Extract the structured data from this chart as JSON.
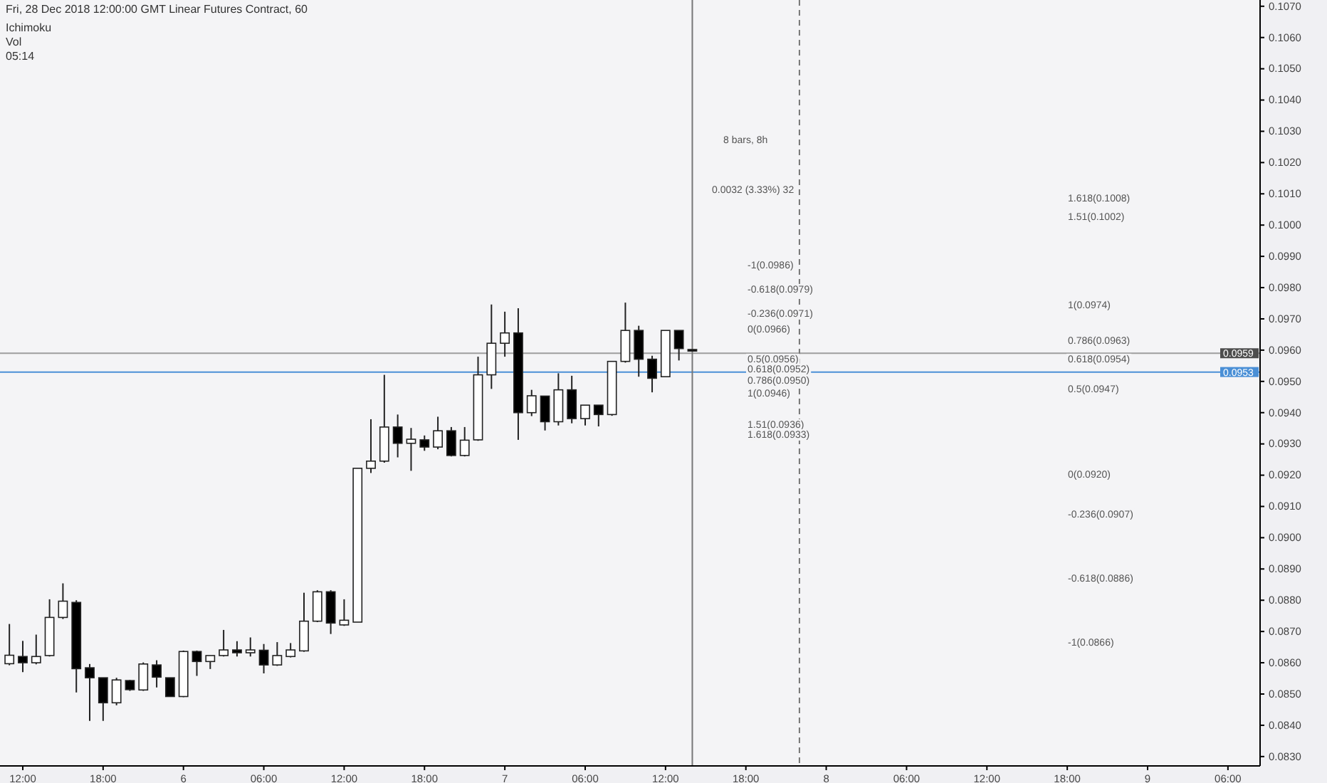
{
  "chart_data": {
    "type": "candlestick",
    "title": "Fri, 28 Dec 2018 12:00:00 GMT Linear Futures Contract, 60",
    "x": [
      "2018-12-05T11:00",
      "2018-12-05T12:00",
      "2018-12-05T13:00",
      "2018-12-05T14:00",
      "2018-12-05T15:00",
      "2018-12-05T16:00",
      "2018-12-05T17:00",
      "2018-12-05T18:00",
      "2018-12-05T19:00",
      "2018-12-05T20:00",
      "2018-12-05T21:00",
      "2018-12-05T22:00",
      "2018-12-05T23:00",
      "2018-12-06T00:00",
      "2018-12-06T01:00",
      "2018-12-06T02:00",
      "2018-12-06T03:00",
      "2018-12-06T04:00",
      "2018-12-06T05:00",
      "2018-12-06T06:00",
      "2018-12-06T07:00",
      "2018-12-06T08:00",
      "2018-12-06T09:00",
      "2018-12-06T10:00",
      "2018-12-06T11:00",
      "2018-12-06T12:00",
      "2018-12-06T13:00",
      "2018-12-06T14:00",
      "2018-12-06T15:00",
      "2018-12-06T16:00",
      "2018-12-06T17:00",
      "2018-12-06T18:00",
      "2018-12-06T19:00",
      "2018-12-06T20:00",
      "2018-12-06T21:00",
      "2018-12-06T22:00",
      "2018-12-06T23:00",
      "2018-12-07T00:00",
      "2018-12-07T01:00",
      "2018-12-07T02:00",
      "2018-12-07T03:00",
      "2018-12-07T04:00",
      "2018-12-07T05:00",
      "2018-12-07T06:00",
      "2018-12-07T07:00",
      "2018-12-07T08:00",
      "2018-12-07T09:00",
      "2018-12-07T10:00",
      "2018-12-07T11:00",
      "2018-12-07T12:00",
      "2018-12-07T13:00",
      "2018-12-07T14:00"
    ],
    "ohlc": [
      [
        0.08597,
        0.08724,
        0.08592,
        0.08624
      ],
      [
        0.0862,
        0.0867,
        0.0857,
        0.086
      ],
      [
        0.086,
        0.0869,
        0.08595,
        0.0862
      ],
      [
        0.08623,
        0.08803,
        0.0862,
        0.08745
      ],
      [
        0.08745,
        0.08854,
        0.0874,
        0.08797
      ],
      [
        0.08793,
        0.088,
        0.08505,
        0.08581
      ],
      [
        0.08584,
        0.08596,
        0.08414,
        0.08552
      ],
      [
        0.08552,
        0.08552,
        0.08414,
        0.08472
      ],
      [
        0.08472,
        0.08552,
        0.08464,
        0.08545
      ],
      [
        0.08543,
        0.08545,
        0.0851,
        0.08514
      ],
      [
        0.08513,
        0.08601,
        0.0851,
        0.08596
      ],
      [
        0.08593,
        0.08608,
        0.08521,
        0.08554
      ],
      [
        0.08552,
        0.08552,
        0.08492,
        0.08492
      ],
      [
        0.08492,
        0.08639,
        0.0849,
        0.08636
      ],
      [
        0.08636,
        0.08639,
        0.08558,
        0.08604
      ],
      [
        0.08604,
        0.08623,
        0.0858,
        0.08623
      ],
      [
        0.08623,
        0.08705,
        0.0862,
        0.08641
      ],
      [
        0.08641,
        0.08669,
        0.0862,
        0.08632
      ],
      [
        0.08632,
        0.08681,
        0.0862,
        0.08641
      ],
      [
        0.0864,
        0.0866,
        0.08566,
        0.08593
      ],
      [
        0.08593,
        0.08666,
        0.0859,
        0.08623
      ],
      [
        0.0862,
        0.08663,
        0.08617,
        0.08641
      ],
      [
        0.08638,
        0.08824,
        0.08635,
        0.08733
      ],
      [
        0.08733,
        0.08832,
        0.0873,
        0.08827
      ],
      [
        0.08827,
        0.08832,
        0.08692,
        0.08727
      ],
      [
        0.08721,
        0.08803,
        0.08718,
        0.08736
      ],
      [
        0.0873,
        0.09222,
        0.0873,
        0.09222
      ],
      [
        0.09222,
        0.09379,
        0.09207,
        0.09245
      ],
      [
        0.09245,
        0.09521,
        0.0924,
        0.09354
      ],
      [
        0.09354,
        0.09394,
        0.09257,
        0.09302
      ],
      [
        0.09302,
        0.09351,
        0.09214,
        0.09315
      ],
      [
        0.09313,
        0.09327,
        0.09278,
        0.0929
      ],
      [
        0.0929,
        0.09387,
        0.09283,
        0.09342
      ],
      [
        0.09342,
        0.09354,
        0.0926,
        0.09263
      ],
      [
        0.09263,
        0.09354,
        0.0926,
        0.09312
      ],
      [
        0.09313,
        0.09579,
        0.0931,
        0.09521
      ],
      [
        0.09521,
        0.09746,
        0.09476,
        0.09622
      ],
      [
        0.09622,
        0.09723,
        0.09579,
        0.09655
      ],
      [
        0.09655,
        0.09734,
        0.09313,
        0.094
      ],
      [
        0.094,
        0.09473,
        0.09389,
        0.09454
      ],
      [
        0.09453,
        0.09453,
        0.09343,
        0.09371
      ],
      [
        0.09371,
        0.09526,
        0.09359,
        0.09473
      ],
      [
        0.09473,
        0.09518,
        0.09366,
        0.09381
      ],
      [
        0.09381,
        0.09424,
        0.09359,
        0.09424
      ],
      [
        0.09424,
        0.09424,
        0.09356,
        0.09394
      ],
      [
        0.09394,
        0.09564,
        0.0939,
        0.09564
      ],
      [
        0.09564,
        0.09752,
        0.0956,
        0.09663
      ],
      [
        0.09663,
        0.09678,
        0.09515,
        0.09571
      ],
      [
        0.09571,
        0.09582,
        0.09465,
        0.0951
      ],
      [
        0.09515,
        0.09663,
        0.09515,
        0.09663
      ],
      [
        0.09663,
        0.09663,
        0.09567,
        0.09605
      ],
      [
        0.09602,
        0.09602,
        0.09597,
        0.09597
      ]
    ],
    "xlim": [
      "2018-12-05T10:18",
      "2018-12-09T08:24"
    ],
    "xticks": [
      {
        "value": "2018-12-05T12:00",
        "label": "12:00"
      },
      {
        "value": "2018-12-05T18:00",
        "label": "18:00"
      },
      {
        "value": "2018-12-06T00:00",
        "label": "6"
      },
      {
        "value": "2018-12-06T06:00",
        "label": "06:00"
      },
      {
        "value": "2018-12-06T12:00",
        "label": "12:00"
      },
      {
        "value": "2018-12-06T18:00",
        "label": "18:00"
      },
      {
        "value": "2018-12-07T00:00",
        "label": "7"
      },
      {
        "value": "2018-12-07T06:00",
        "label": "06:00"
      },
      {
        "value": "2018-12-07T12:00",
        "label": "12:00"
      },
      {
        "value": "2018-12-07T18:00",
        "label": "18:00"
      },
      {
        "value": "2018-12-08T00:00",
        "label": "8"
      },
      {
        "value": "2018-12-08T06:00",
        "label": "06:00"
      },
      {
        "value": "2018-12-08T12:00",
        "label": "12:00"
      },
      {
        "value": "2018-12-08T18:00",
        "label": "18:00"
      },
      {
        "value": "2018-12-09T00:00",
        "label": "9"
      },
      {
        "value": "2018-12-09T06:00",
        "label": "06:00"
      }
    ],
    "ylim": [
      0.0827,
      0.1072
    ],
    "yticks": [
      {
        "value": 0.083,
        "label": "0.0830"
      },
      {
        "value": 0.084,
        "label": "0.0840"
      },
      {
        "value": 0.085,
        "label": "0.0850"
      },
      {
        "value": 0.086,
        "label": "0.0860"
      },
      {
        "value": 0.087,
        "label": "0.0870"
      },
      {
        "value": 0.088,
        "label": "0.0880"
      },
      {
        "value": 0.089,
        "label": "0.0890"
      },
      {
        "value": 0.09,
        "label": "0.0900"
      },
      {
        "value": 0.091,
        "label": "0.0910"
      },
      {
        "value": 0.092,
        "label": "0.0920"
      },
      {
        "value": 0.093,
        "label": "0.0930"
      },
      {
        "value": 0.094,
        "label": "0.0940"
      },
      {
        "value": 0.095,
        "label": "0.0950"
      },
      {
        "value": 0.096,
        "label": "0.0960"
      },
      {
        "value": 0.097,
        "label": "0.0970"
      },
      {
        "value": 0.098,
        "label": "0.0980"
      },
      {
        "value": 0.099,
        "label": "0.0990"
      },
      {
        "value": 0.1,
        "label": "0.1000"
      },
      {
        "value": 0.101,
        "label": "0.1010"
      },
      {
        "value": 0.102,
        "label": "0.1020"
      },
      {
        "value": 0.103,
        "label": "0.1030"
      },
      {
        "value": 0.104,
        "label": "0.1040"
      },
      {
        "value": 0.105,
        "label": "0.1050"
      },
      {
        "value": 0.106,
        "label": "0.1060"
      },
      {
        "value": 0.107,
        "label": "0.1070"
      }
    ],
    "ref_lines": [
      {
        "axis": "y",
        "value": 0.0959,
        "label": "0.0959",
        "color": "#9e9e9e"
      },
      {
        "axis": "y",
        "value": 0.0953,
        "label": "0.0953",
        "color": "#4a8fd6"
      },
      {
        "axis": "x",
        "value": "2018-12-07T14:00",
        "color": "#777777"
      },
      {
        "axis": "x",
        "value": "2018-12-07T22:00",
        "color": "#777777",
        "line_style": "dashed"
      }
    ],
    "annotations": [
      "Ichimoku",
      "Vol",
      "05:14",
      "8 bars, 8h",
      "0.0032 (3.33%) 32",
      "1.618(0.1008)",
      "1.51(0.1002)",
      "-1(0.0986)",
      "-0.618(0.0979)",
      "-0.236(0.0971)",
      "0(0.0966)",
      "0.5(0.0956)",
      "0.618(0.0952)",
      "0.786(0.0950)",
      "1(0.0946)",
      "1.51(0.0936)",
      "1.618(0.0933)",
      "1(0.0974)",
      "0.786(0.0963)",
      "0.618(0.0954)",
      "0.5(0.0947)",
      "0(0.0920)",
      "-0.236(0.0907)",
      "-0.618(0.0886)",
      "-1(0.0866)"
    ]
  }
}
